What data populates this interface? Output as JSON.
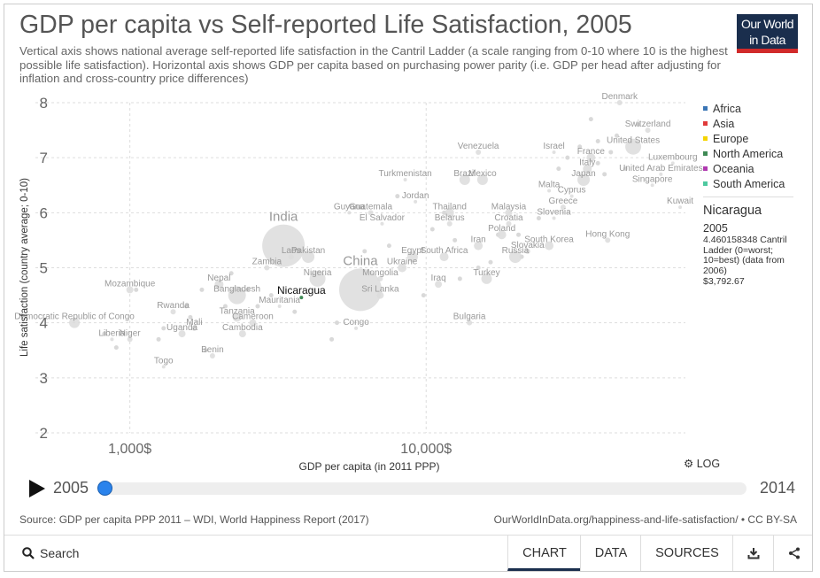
{
  "header": {
    "title": "GDP per capita vs Self-reported Life Satisfaction, 2005",
    "subtitle": "Vertical axis shows national average self-reported life satisfaction in the Cantril Ladder (a scale ranging from 0-10 where 10 is the highest possible life satisfaction). Horizontal axis shows GDP per capita based on purchasing power parity (i.e. GDP per head after adjusting for inflation and cross-country price differences)",
    "logo_line1": "Our World",
    "logo_line2": "in Data"
  },
  "legend": {
    "items": [
      {
        "label": "Africa",
        "color": "#3a75b5"
      },
      {
        "label": "Asia",
        "color": "#e03a3a"
      },
      {
        "label": "Europe",
        "color": "#f5d400"
      },
      {
        "label": "North America",
        "color": "#3f8a55"
      },
      {
        "label": "Oceania",
        "color": "#b03ab0"
      },
      {
        "label": "South America",
        "color": "#4ec9a0"
      }
    ]
  },
  "hover": {
    "country": "Nicaragua",
    "year": "2005",
    "description": "4.460158348 Cantril Ladder (0=worst; 10=best) (data from 2006)",
    "gdp": "$3,792.67"
  },
  "controls": {
    "log_label": "LOG",
    "start_year": "2005",
    "end_year": "2014",
    "selected_year_fraction": 0.0
  },
  "footer": {
    "sources": "Source: GDP per capita PPP 2011 – WDI, World Happiness Report (2017)",
    "url": "OurWorldInData.org/happiness-and-life-satisfaction/ • CC BY-SA",
    "search_label": "Search",
    "tabs": [
      "CHART",
      "DATA",
      "SOURCES"
    ],
    "active_tab": "CHART"
  },
  "chart_data": {
    "type": "scatter",
    "title": "GDP per capita vs Self-reported Life Satisfaction, 2005",
    "xlabel": "GDP per capita (in 2011 PPP)",
    "ylabel": "Life satisfaction (country average; 0-10)",
    "xscale": "log",
    "xlim": [
      480,
      75000
    ],
    "ylim": [
      2,
      8
    ],
    "xticks": [
      {
        "value": 1000,
        "label": "1,000$"
      },
      {
        "value": 10000,
        "label": "10,000$"
      }
    ],
    "yticks": [
      2,
      3,
      4,
      5,
      6,
      7,
      8
    ],
    "grid": true,
    "legend_position": "right",
    "highlight": "Nicaragua",
    "points": [
      {
        "name": "Denmark",
        "x": 45000,
        "y": 8.0,
        "size": 3
      },
      {
        "name": "Switzerland",
        "x": 56000,
        "y": 7.5,
        "size": 3
      },
      {
        "name": "United States",
        "x": 50000,
        "y": 7.2,
        "size": 9
      },
      {
        "name": "Luxembourg",
        "x": 68000,
        "y": 6.9,
        "size": 2
      },
      {
        "name": "United Arab Emirates",
        "x": 62000,
        "y": 6.7,
        "size": 2
      },
      {
        "name": "Singapore",
        "x": 58000,
        "y": 6.5,
        "size": 2
      },
      {
        "name": "Kuwait",
        "x": 72000,
        "y": 6.1,
        "size": 2
      },
      {
        "name": "Israel",
        "x": 27000,
        "y": 7.1,
        "size": 2
      },
      {
        "name": "France",
        "x": 36000,
        "y": 7.0,
        "size": 5
      },
      {
        "name": "Italy",
        "x": 35000,
        "y": 6.8,
        "size": 5
      },
      {
        "name": "Japan",
        "x": 34000,
        "y": 6.6,
        "size": 7
      },
      {
        "name": "Cyprus",
        "x": 31000,
        "y": 6.3,
        "size": 2
      },
      {
        "name": "Malta",
        "x": 26000,
        "y": 6.4,
        "size": 2
      },
      {
        "name": "Greece",
        "x": 29000,
        "y": 6.1,
        "size": 3
      },
      {
        "name": "Slovenia",
        "x": 27000,
        "y": 5.9,
        "size": 2
      },
      {
        "name": "South Korea",
        "x": 26000,
        "y": 5.4,
        "size": 5
      },
      {
        "name": "Hong Kong",
        "x": 41000,
        "y": 5.5,
        "size": 3
      },
      {
        "name": "Venezuela",
        "x": 15000,
        "y": 7.1,
        "size": 3
      },
      {
        "name": "Brazil",
        "x": 13500,
        "y": 6.6,
        "size": 6
      },
      {
        "name": "Mexico",
        "x": 15500,
        "y": 6.6,
        "size": 6
      },
      {
        "name": "Turkmenistan",
        "x": 8500,
        "y": 6.6,
        "size": 2
      },
      {
        "name": "Jordan",
        "x": 9200,
        "y": 6.2,
        "size": 2
      },
      {
        "name": "Guyana",
        "x": 5500,
        "y": 6.0,
        "size": 2
      },
      {
        "name": "Guatemala",
        "x": 6500,
        "y": 6.0,
        "size": 3
      },
      {
        "name": "El Salvador",
        "x": 7100,
        "y": 5.8,
        "size": 2
      },
      {
        "name": "Thailand",
        "x": 12000,
        "y": 6.0,
        "size": 5
      },
      {
        "name": "Belarus",
        "x": 12000,
        "y": 5.8,
        "size": 3
      },
      {
        "name": "Malaysia",
        "x": 19000,
        "y": 6.0,
        "size": 4
      },
      {
        "name": "Croatia",
        "x": 19000,
        "y": 5.8,
        "size": 3
      },
      {
        "name": "Poland",
        "x": 18000,
        "y": 5.6,
        "size": 5
      },
      {
        "name": "Iran",
        "x": 15000,
        "y": 5.4,
        "size": 5
      },
      {
        "name": "Slovakia",
        "x": 22000,
        "y": 5.3,
        "size": 3
      },
      {
        "name": "Russia",
        "x": 20000,
        "y": 5.2,
        "size": 7
      },
      {
        "name": "South Africa",
        "x": 11500,
        "y": 5.2,
        "size": 5
      },
      {
        "name": "Egypt",
        "x": 9000,
        "y": 5.2,
        "size": 6
      },
      {
        "name": "Ukraine",
        "x": 8300,
        "y": 5.0,
        "size": 5
      },
      {
        "name": "Turkey",
        "x": 16000,
        "y": 4.8,
        "size": 6
      },
      {
        "name": "Iraq",
        "x": 11000,
        "y": 4.7,
        "size": 4
      },
      {
        "name": "Bulgaria",
        "x": 14000,
        "y": 4.0,
        "size": 3
      },
      {
        "name": "India",
        "x": 3300,
        "y": 5.4,
        "size": 24
      },
      {
        "name": "Laos",
        "x": 3500,
        "y": 5.2,
        "size": 3
      },
      {
        "name": "Pakistan",
        "x": 4000,
        "y": 5.2,
        "size": 7
      },
      {
        "name": "China",
        "x": 6000,
        "y": 4.6,
        "size": 24
      },
      {
        "name": "Mongolia",
        "x": 7000,
        "y": 4.8,
        "size": 3
      },
      {
        "name": "Sri Lanka",
        "x": 7000,
        "y": 4.5,
        "size": 4
      },
      {
        "name": "Nigeria",
        "x": 4300,
        "y": 4.8,
        "size": 9
      },
      {
        "name": "Nicaragua",
        "x": 3792.67,
        "y": 4.46,
        "size": 2
      },
      {
        "name": "Mauritania",
        "x": 3200,
        "y": 4.3,
        "size": 2
      },
      {
        "name": "Zambia",
        "x": 2900,
        "y": 5.0,
        "size": 3
      },
      {
        "name": "Bangladesh",
        "x": 2300,
        "y": 4.5,
        "size": 10
      },
      {
        "name": "Nepal",
        "x": 2000,
        "y": 4.7,
        "size": 5
      },
      {
        "name": "Cameroon",
        "x": 2600,
        "y": 4.0,
        "size": 4
      },
      {
        "name": "Tanzania",
        "x": 2300,
        "y": 4.1,
        "size": 5
      },
      {
        "name": "Cambodia",
        "x": 2400,
        "y": 3.8,
        "size": 4
      },
      {
        "name": "Congo",
        "x": 5800,
        "y": 3.9,
        "size": 2
      },
      {
        "name": "Mozambique",
        "x": 1000,
        "y": 4.6,
        "size": 4
      },
      {
        "name": "Rwanda",
        "x": 1400,
        "y": 4.2,
        "size": 3
      },
      {
        "name": "Uganda",
        "x": 1500,
        "y": 3.8,
        "size": 4
      },
      {
        "name": "Mali",
        "x": 1650,
        "y": 3.9,
        "size": 3
      },
      {
        "name": "Democratic Republic of Congo",
        "x": 650,
        "y": 4.0,
        "size": 6
      },
      {
        "name": "Liberia",
        "x": 870,
        "y": 3.7,
        "size": 2
      },
      {
        "name": "Niger",
        "x": 1000,
        "y": 3.7,
        "size": 3
      },
      {
        "name": "Togo",
        "x": 1300,
        "y": 3.2,
        "size": 2
      },
      {
        "name": "Benin",
        "x": 1900,
        "y": 3.4,
        "size": 3
      }
    ],
    "unlabeled_points": [
      {
        "x": 820,
        "y": 3.8
      },
      {
        "x": 900,
        "y": 3.55
      },
      {
        "x": 1050,
        "y": 4.6
      },
      {
        "x": 1250,
        "y": 3.7
      },
      {
        "x": 1300,
        "y": 3.9
      },
      {
        "x": 1550,
        "y": 4.3
      },
      {
        "x": 1600,
        "y": 4.1
      },
      {
        "x": 1750,
        "y": 4.6
      },
      {
        "x": 1800,
        "y": 3.5
      },
      {
        "x": 2100,
        "y": 4.3
      },
      {
        "x": 2200,
        "y": 4.9
      },
      {
        "x": 2500,
        "y": 4.6
      },
      {
        "x": 2700,
        "y": 4.3
      },
      {
        "x": 3000,
        "y": 4.5
      },
      {
        "x": 3600,
        "y": 4.2
      },
      {
        "x": 4800,
        "y": 3.7
      },
      {
        "x": 5000,
        "y": 4.0
      },
      {
        "x": 6200,
        "y": 5.3
      },
      {
        "x": 7500,
        "y": 5.4
      },
      {
        "x": 8000,
        "y": 6.3
      },
      {
        "x": 9800,
        "y": 4.5
      },
      {
        "x": 10500,
        "y": 5.7
      },
      {
        "x": 11500,
        "y": 6.0
      },
      {
        "x": 12500,
        "y": 5.5
      },
      {
        "x": 13000,
        "y": 4.8
      },
      {
        "x": 16500,
        "y": 5.1
      },
      {
        "x": 17500,
        "y": 5.6
      },
      {
        "x": 20500,
        "y": 5.6
      },
      {
        "x": 24000,
        "y": 5.9
      },
      {
        "x": 28000,
        "y": 6.8
      },
      {
        "x": 30000,
        "y": 7.0
      },
      {
        "x": 33000,
        "y": 7.2
      },
      {
        "x": 38000,
        "y": 7.3
      },
      {
        "x": 42000,
        "y": 7.1
      },
      {
        "x": 44000,
        "y": 7.4
      },
      {
        "x": 38000,
        "y": 6.9
      },
      {
        "x": 40000,
        "y": 6.7
      },
      {
        "x": 47000,
        "y": 6.8
      },
      {
        "x": 36000,
        "y": 7.7
      },
      {
        "x": 52000,
        "y": 7.6
      },
      {
        "x": 21000,
        "y": 5.2
      },
      {
        "x": 15000,
        "y": 5.0
      }
    ]
  }
}
